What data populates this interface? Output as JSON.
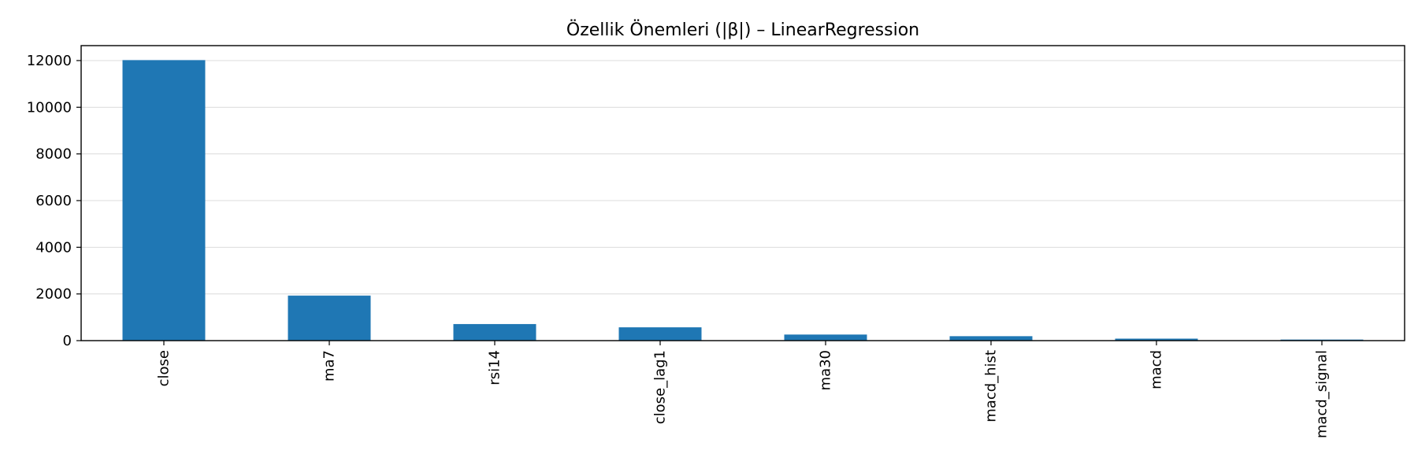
{
  "chart_data": {
    "type": "bar",
    "title": "Özellik Önemleri (|β|) – LinearRegression",
    "xlabel": "",
    "ylabel": "",
    "categories": [
      "close",
      "ma7",
      "rsi14",
      "close_lag1",
      "ma30",
      "macd_hist",
      "macd",
      "macd_signal"
    ],
    "values": [
      12020,
      1930,
      710,
      570,
      260,
      190,
      85,
      45
    ],
    "ylim": [
      0,
      12640
    ],
    "yticks": [
      0,
      2000,
      4000,
      6000,
      8000,
      10000,
      12000
    ],
    "ytick_labels": [
      "0",
      "2000",
      "4000",
      "6000",
      "8000",
      "10000",
      "12000"
    ],
    "grid": "horizontal",
    "bar_color": "#1f77b4",
    "legend": "none"
  }
}
